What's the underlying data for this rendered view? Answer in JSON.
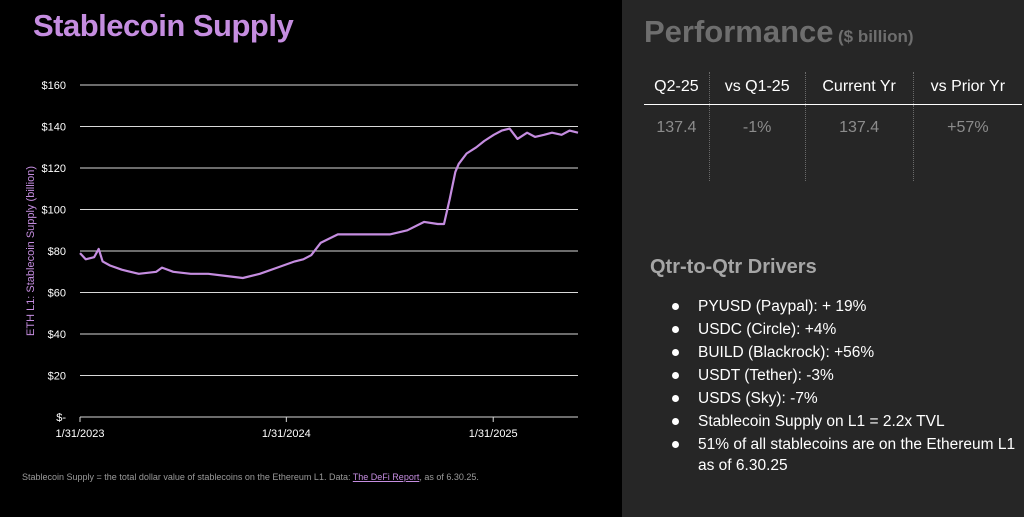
{
  "title": "Stablecoin Supply",
  "footnote": {
    "text": "Stablecoin Supply = the total dollar value of stablecoins on the Ethereum L1. Data: ",
    "link": "The DeFi Report",
    "suffix": ", as of 6.30.25."
  },
  "performance": {
    "title": "Performance",
    "unit": "($ billion)",
    "headers": [
      "Q2-25",
      "vs Q1-25",
      "Current Yr",
      "vs Prior Yr"
    ],
    "values": [
      "137.4",
      "-1%",
      "137.4",
      "+57%"
    ]
  },
  "drivers": {
    "title": "Qtr-to-Qtr Drivers",
    "items": [
      "PYUSD (Paypal): + 19%",
      "USDC (Circle): +4%",
      "BUILD (Blackrock): +56%",
      "USDT (Tether): -3%",
      "USDS (Sky): -7%",
      "Stablecoin Supply on L1 = 2.2x TVL",
      "51% of all stablecoins are on the Ethereum L1 as of 6.30.25"
    ]
  },
  "colors": {
    "accent": "#c58de0",
    "line": "#c58de0",
    "grid": "#d9d9d9",
    "panel": "#262626"
  },
  "chart_data": {
    "type": "line",
    "ylabel": "ETH L1: Stablecoin Supply (billion)",
    "ylim": [
      0,
      160
    ],
    "yticks": [
      0,
      20,
      40,
      60,
      80,
      100,
      120,
      140,
      160
    ],
    "ytick_labels": [
      "$-",
      "$20",
      "$40",
      "$60",
      "$80",
      "$100",
      "$120",
      "$140",
      "$160"
    ],
    "xlim": [
      "2023-01-31",
      "2025-06-30"
    ],
    "xticks": [
      "2023-01-31",
      "2024-01-31",
      "2025-01-31"
    ],
    "xtick_labels": [
      "1/31/2023",
      "1/31/2024",
      "1/31/2025"
    ],
    "grid": true,
    "series": [
      {
        "x": [
          "2023-01-31",
          "2023-02-10",
          "2023-02-25",
          "2023-03-05",
          "2023-03-12",
          "2023-03-25",
          "2023-04-15",
          "2023-05-15",
          "2023-06-15",
          "2023-06-25",
          "2023-07-15",
          "2023-08-15",
          "2023-09-15",
          "2023-10-15",
          "2023-11-15",
          "2023-12-15",
          "2024-01-15",
          "2024-02-15",
          "2024-03-01",
          "2024-03-15",
          "2024-04-01",
          "2024-05-01",
          "2024-06-01",
          "2024-07-01",
          "2024-08-01",
          "2024-09-01",
          "2024-10-01",
          "2024-10-25",
          "2024-11-05",
          "2024-11-15",
          "2024-11-25",
          "2024-12-01",
          "2024-12-15",
          "2025-01-01",
          "2025-01-15",
          "2025-02-01",
          "2025-02-15",
          "2025-03-01",
          "2025-03-15",
          "2025-04-01",
          "2025-04-15",
          "2025-05-01",
          "2025-05-15",
          "2025-06-01",
          "2025-06-15",
          "2025-06-30"
        ],
        "values": [
          79,
          76,
          77,
          81,
          75,
          73,
          71,
          69,
          70,
          72,
          70,
          69,
          69,
          68,
          67,
          69,
          72,
          75,
          76,
          78,
          84,
          88,
          88,
          88,
          88,
          90,
          94,
          93,
          93,
          105,
          118,
          122,
          127,
          130,
          133,
          136,
          138,
          139,
          134,
          137,
          135,
          136,
          137,
          136,
          138,
          137
        ]
      }
    ]
  }
}
